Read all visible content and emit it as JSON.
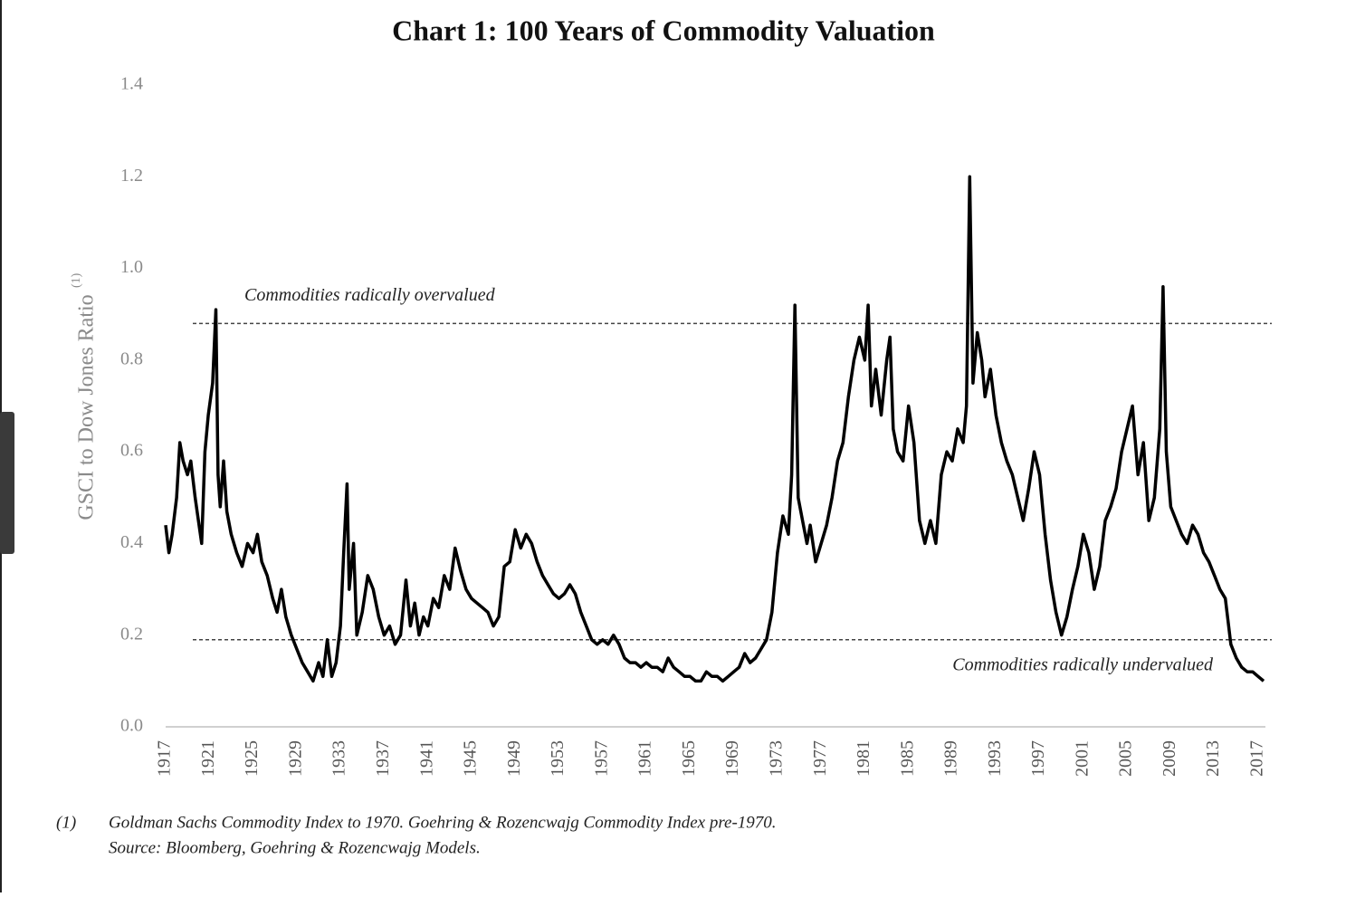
{
  "chart_data": {
    "type": "line",
    "title": "Chart 1: 100 Years of Commodity Valuation",
    "y_label": "GSCI to Dow Jones Ratio",
    "y_label_superscript": "(1)",
    "color": "#000000",
    "xlim": [
      1917,
      2018
    ],
    "xticks": [
      1917,
      1921,
      1925,
      1929,
      1933,
      1937,
      1941,
      1945,
      1949,
      1953,
      1957,
      1961,
      1965,
      1969,
      1973,
      1977,
      1981,
      1985,
      1989,
      1993,
      1997,
      2001,
      2005,
      2009,
      2013,
      2017
    ],
    "ylim": [
      0,
      1.4
    ],
    "yticks": [
      {
        "value": 0,
        "label": "0.0"
      },
      0.2,
      0.4,
      0.6,
      0.8,
      {
        "value": 1,
        "label": "1.0"
      },
      1.2,
      1.4
    ],
    "reference_lines": [
      {
        "value": 0.88,
        "label": "Commodities radically overvalued"
      },
      {
        "value": 0.19,
        "label": "Commodities radically undervalued"
      }
    ],
    "x": [
      1917.0,
      1917.3,
      1917.6,
      1918.0,
      1918.3,
      1918.6,
      1919.0,
      1919.3,
      1919.7,
      1920.0,
      1920.3,
      1920.6,
      1920.9,
      1921.3,
      1921.6,
      1921.8,
      1922.0,
      1922.3,
      1922.6,
      1923.0,
      1923.5,
      1924.0,
      1924.5,
      1925.0,
      1925.4,
      1925.8,
      1926.3,
      1926.8,
      1927.2,
      1927.6,
      1928.0,
      1928.5,
      1929.0,
      1929.5,
      1930.0,
      1930.5,
      1931.0,
      1931.4,
      1931.8,
      1932.2,
      1932.6,
      1933.0,
      1933.3,
      1933.6,
      1933.8,
      1934.2,
      1934.5,
      1935.0,
      1935.5,
      1936.0,
      1936.5,
      1937.0,
      1937.5,
      1938.0,
      1938.5,
      1939.0,
      1939.4,
      1939.8,
      1940.2,
      1940.6,
      1941.0,
      1941.5,
      1942.0,
      1942.5,
      1943.0,
      1943.5,
      1944.0,
      1944.5,
      1945.0,
      1945.5,
      1946.0,
      1946.5,
      1947.0,
      1947.5,
      1948.0,
      1948.5,
      1949.0,
      1949.5,
      1950.0,
      1950.5,
      1951.0,
      1951.5,
      1952.0,
      1952.5,
      1953.0,
      1953.5,
      1954.0,
      1954.5,
      1955.0,
      1955.5,
      1956.0,
      1956.5,
      1957.0,
      1957.5,
      1958.0,
      1958.5,
      1959.0,
      1959.5,
      1960.0,
      1960.5,
      1961.0,
      1961.5,
      1962.0,
      1962.5,
      1963.0,
      1963.5,
      1964.0,
      1964.5,
      1965.0,
      1965.5,
      1966.0,
      1966.5,
      1967.0,
      1967.5,
      1968.0,
      1968.5,
      1969.0,
      1969.5,
      1970.0,
      1970.5,
      1971.0,
      1971.5,
      1972.0,
      1972.5,
      1973.0,
      1973.5,
      1974.0,
      1974.3,
      1974.6,
      1974.9,
      1975.3,
      1975.7,
      1976.0,
      1976.5,
      1977.0,
      1977.5,
      1978.0,
      1978.5,
      1979.0,
      1979.5,
      1980.0,
      1980.5,
      1981.0,
      1981.3,
      1981.6,
      1982.0,
      1982.5,
      1983.0,
      1983.3,
      1983.6,
      1984.0,
      1984.5,
      1985.0,
      1985.5,
      1986.0,
      1986.5,
      1987.0,
      1987.5,
      1988.0,
      1988.5,
      1989.0,
      1989.5,
      1990.0,
      1990.3,
      1990.6,
      1990.9,
      1991.3,
      1991.7,
      1992.0,
      1992.5,
      1993.0,
      1993.5,
      1994.0,
      1994.5,
      1995.0,
      1995.5,
      1996.0,
      1996.5,
      1997.0,
      1997.5,
      1998.0,
      1998.5,
      1999.0,
      1999.5,
      2000.0,
      2000.5,
      2001.0,
      2001.5,
      2002.0,
      2002.5,
      2003.0,
      2003.5,
      2004.0,
      2004.5,
      2005.0,
      2005.5,
      2006.0,
      2006.5,
      2007.0,
      2007.5,
      2008.0,
      2008.3,
      2008.6,
      2009.0,
      2009.5,
      2010.0,
      2010.5,
      2011.0,
      2011.5,
      2012.0,
      2012.5,
      2013.0,
      2013.5,
      2014.0,
      2014.5,
      2015.0,
      2015.5,
      2016.0,
      2016.5,
      2017.0,
      2017.5
    ],
    "values": [
      0.44,
      0.38,
      0.42,
      0.5,
      0.62,
      0.58,
      0.55,
      0.58,
      0.5,
      0.45,
      0.4,
      0.6,
      0.68,
      0.75,
      0.91,
      0.55,
      0.48,
      0.58,
      0.47,
      0.42,
      0.38,
      0.35,
      0.4,
      0.38,
      0.42,
      0.36,
      0.33,
      0.28,
      0.25,
      0.3,
      0.24,
      0.2,
      0.17,
      0.14,
      0.12,
      0.1,
      0.14,
      0.11,
      0.19,
      0.11,
      0.14,
      0.22,
      0.38,
      0.53,
      0.3,
      0.4,
      0.2,
      0.25,
      0.33,
      0.3,
      0.24,
      0.2,
      0.22,
      0.18,
      0.2,
      0.32,
      0.22,
      0.27,
      0.2,
      0.24,
      0.22,
      0.28,
      0.26,
      0.33,
      0.3,
      0.39,
      0.34,
      0.3,
      0.28,
      0.27,
      0.26,
      0.25,
      0.22,
      0.24,
      0.35,
      0.36,
      0.43,
      0.39,
      0.42,
      0.4,
      0.36,
      0.33,
      0.31,
      0.29,
      0.28,
      0.29,
      0.31,
      0.29,
      0.25,
      0.22,
      0.19,
      0.18,
      0.19,
      0.18,
      0.2,
      0.18,
      0.15,
      0.14,
      0.14,
      0.13,
      0.14,
      0.13,
      0.13,
      0.12,
      0.15,
      0.13,
      0.12,
      0.11,
      0.11,
      0.1,
      0.1,
      0.12,
      0.11,
      0.11,
      0.1,
      0.11,
      0.12,
      0.13,
      0.16,
      0.14,
      0.15,
      0.17,
      0.19,
      0.25,
      0.38,
      0.46,
      0.42,
      0.55,
      0.92,
      0.5,
      0.45,
      0.4,
      0.44,
      0.36,
      0.4,
      0.44,
      0.5,
      0.58,
      0.62,
      0.72,
      0.8,
      0.85,
      0.8,
      0.92,
      0.7,
      0.78,
      0.68,
      0.8,
      0.85,
      0.65,
      0.6,
      0.58,
      0.7,
      0.62,
      0.45,
      0.4,
      0.45,
      0.4,
      0.55,
      0.6,
      0.58,
      0.65,
      0.62,
      0.7,
      1.2,
      0.75,
      0.86,
      0.8,
      0.72,
      0.78,
      0.68,
      0.62,
      0.58,
      0.55,
      0.5,
      0.45,
      0.52,
      0.6,
      0.55,
      0.42,
      0.32,
      0.25,
      0.2,
      0.24,
      0.3,
      0.35,
      0.42,
      0.38,
      0.3,
      0.35,
      0.45,
      0.48,
      0.52,
      0.6,
      0.65,
      0.7,
      0.55,
      0.62,
      0.45,
      0.5,
      0.65,
      0.96,
      0.6,
      0.48,
      0.45,
      0.42,
      0.4,
      0.44,
      0.42,
      0.38,
      0.36,
      0.33,
      0.3,
      0.28,
      0.18,
      0.15,
      0.13,
      0.12,
      0.12,
      0.11,
      0.1
    ],
    "note_marker": "(1)",
    "notes": [
      "Goldman Sachs Commodity Index to 1970.  Goehring & Rozencwajg Commodity Index pre-1970.",
      "Source: Bloomberg, Goehring & Rozencwajg Models."
    ]
  }
}
